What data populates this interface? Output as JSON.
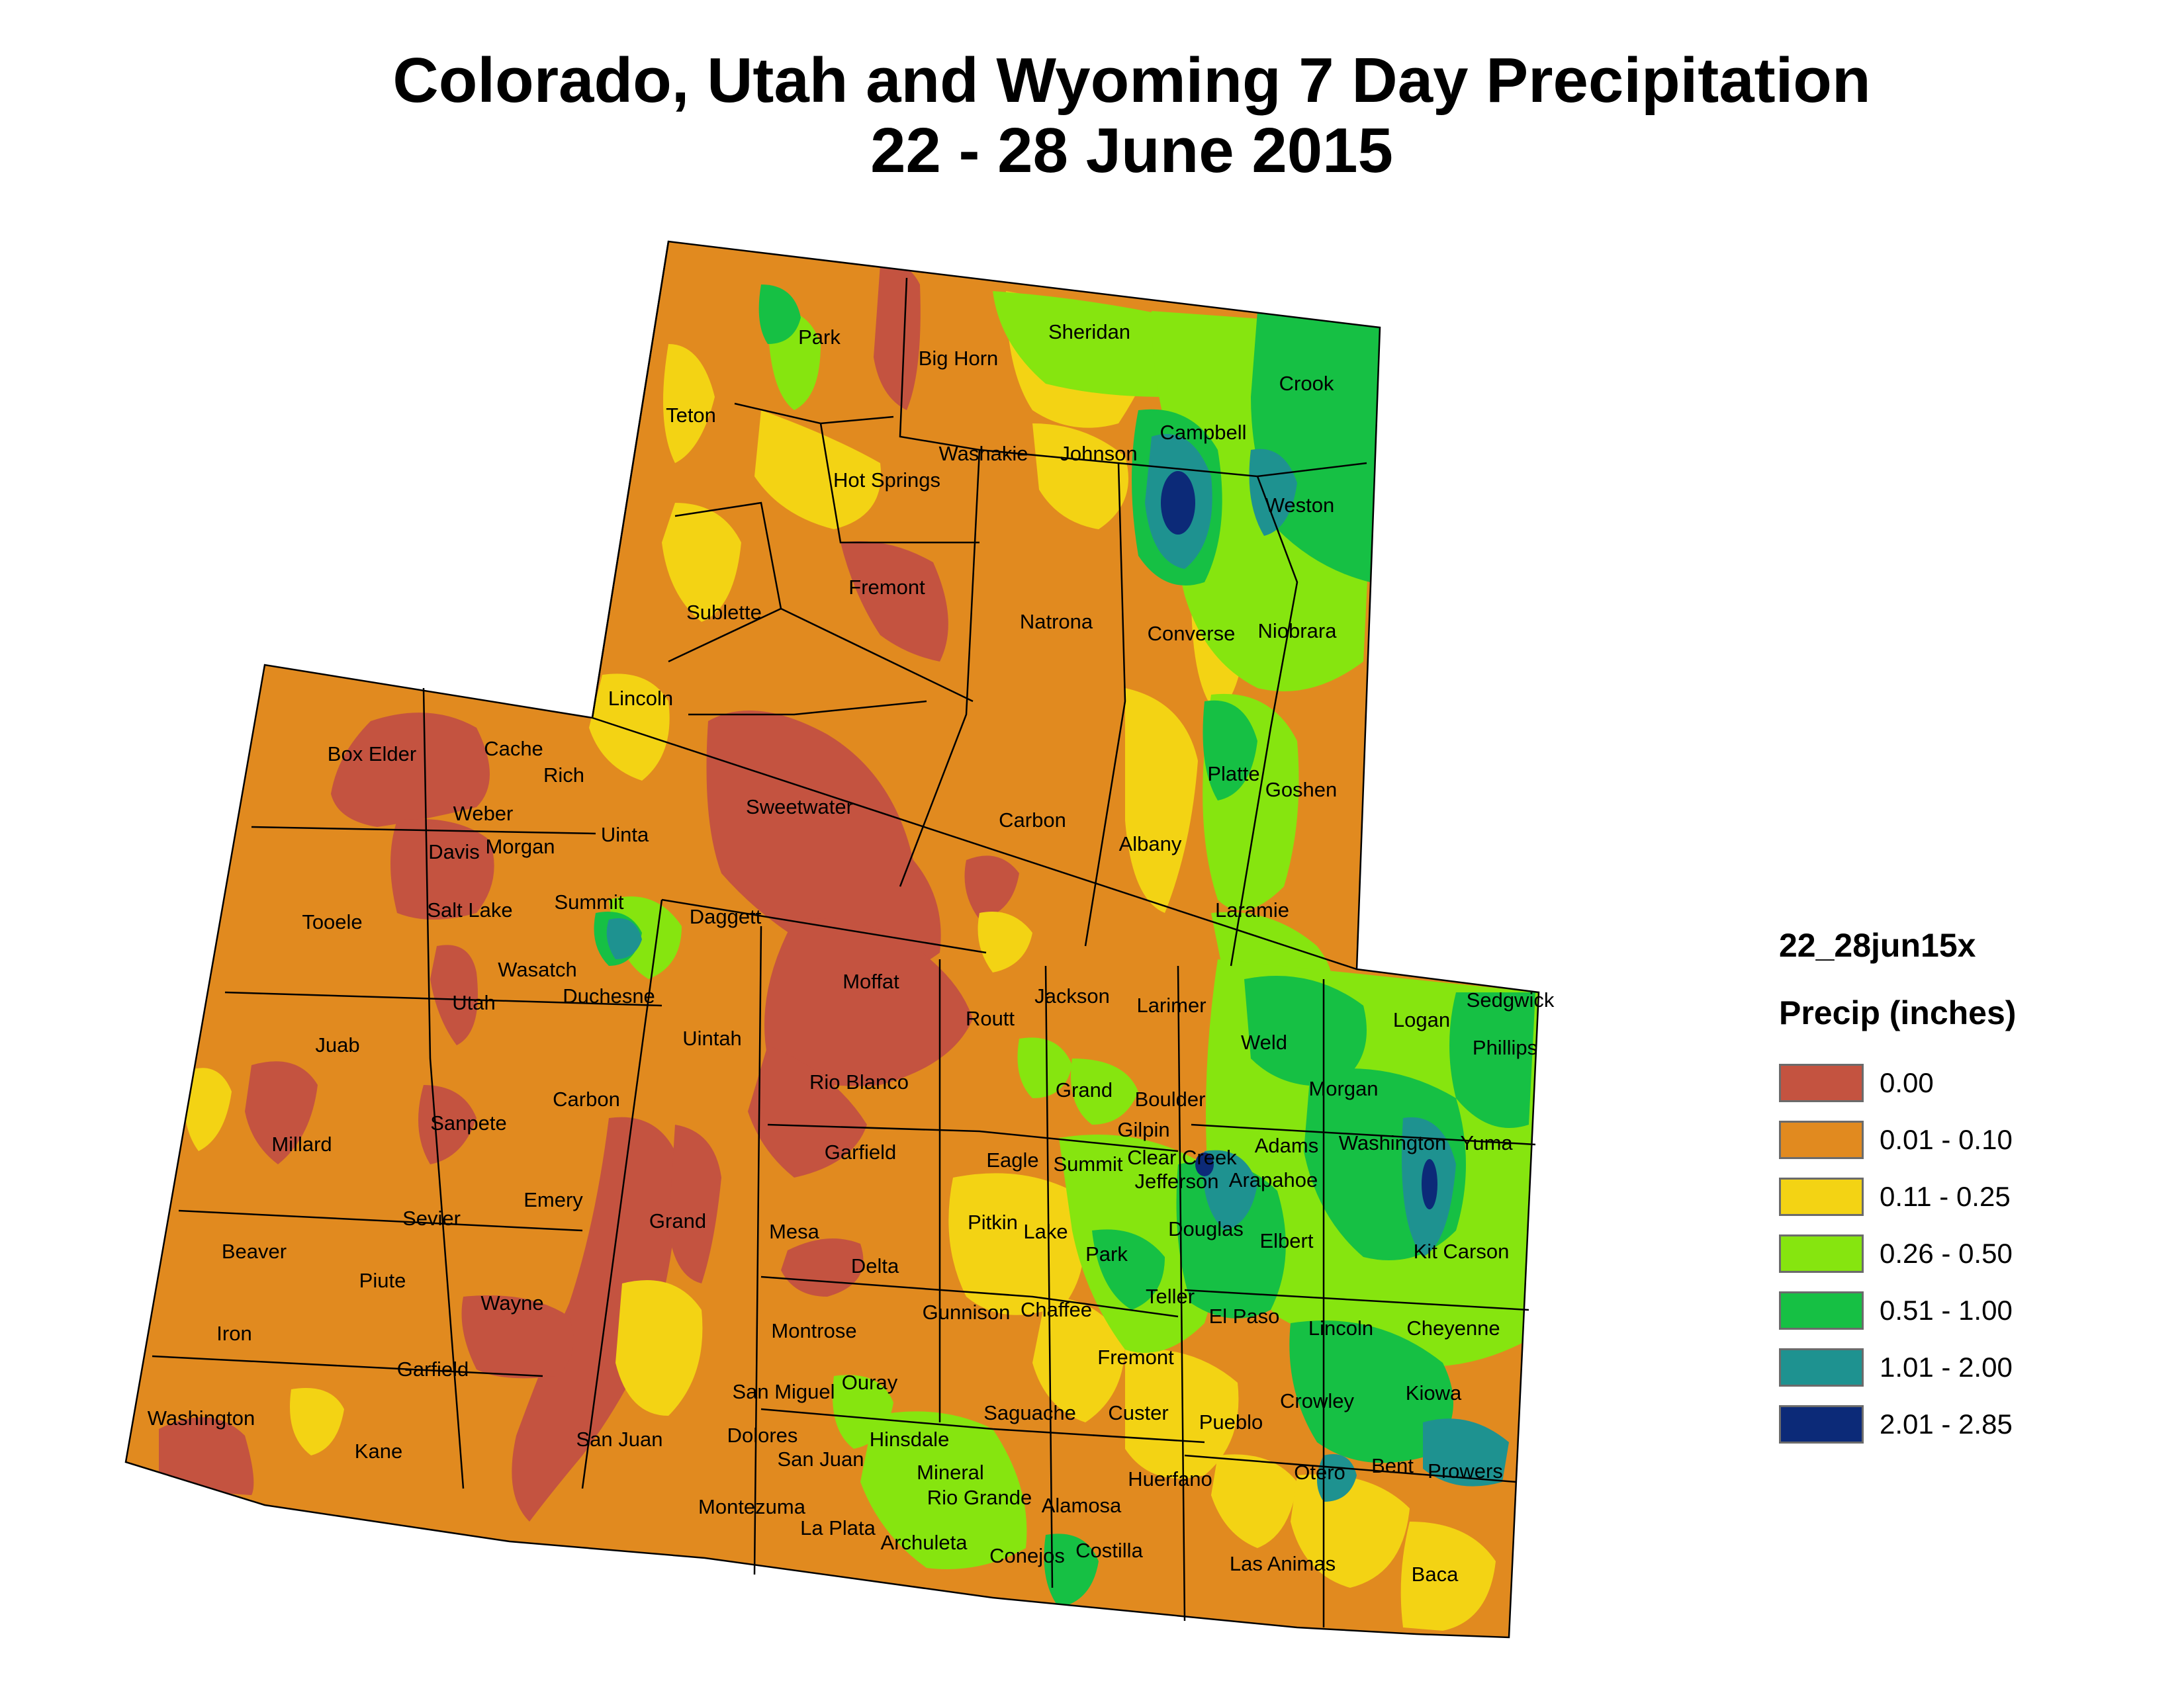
{
  "title": {
    "line1": "Colorado, Utah and Wyoming 7 Day Precipitation",
    "line2": "22 - 28 June 2015"
  },
  "legend": {
    "layer_name": "22_28jun15x",
    "field_name": "Precip (inches)",
    "classes": [
      {
        "label": "0.00",
        "color": "#c45340"
      },
      {
        "label": "0.01 - 0.10",
        "color": "#e18a1f"
      },
      {
        "label": "0.11 - 0.25",
        "color": "#f3d314"
      },
      {
        "label": "0.26 - 0.50",
        "color": "#86e50f"
      },
      {
        "label": "0.51 - 1.00",
        "color": "#16c044"
      },
      {
        "label": "1.01 - 2.00",
        "color": "#1e9290"
      },
      {
        "label": "2.01 - 2.85",
        "color": "#0c2a78"
      }
    ]
  },
  "counties": {
    "wyoming": [
      "Park",
      "Big Horn",
      "Sheridan",
      "Crook",
      "Teton",
      "Washakie",
      "Johnson",
      "Campbell",
      "Hot Springs",
      "Weston",
      "Fremont",
      "Sublette",
      "Natrona",
      "Converse",
      "Niobrara",
      "Lincoln",
      "Sweetwater",
      "Carbon",
      "Platte",
      "Goshen",
      "Uinta",
      "Albany",
      "Laramie"
    ],
    "utah": [
      "Box Elder",
      "Cache",
      "Rich",
      "Weber",
      "Davis",
      "Morgan",
      "Tooele",
      "Salt Lake",
      "Summit",
      "Daggett",
      "Wasatch",
      "Utah",
      "Duchesne",
      "Uintah",
      "Juab",
      "Carbon",
      "Millard",
      "Sanpete",
      "Emery",
      "Grand",
      "Sevier",
      "Beaver",
      "Piute",
      "Wayne",
      "Iron",
      "Garfield",
      "Washington",
      "Kane",
      "San Juan"
    ],
    "colorado": [
      "Moffat",
      "Routt",
      "Jackson",
      "Larimer",
      "Weld",
      "Logan",
      "Sedgwick",
      "Phillips",
      "Rio Blanco",
      "Grand",
      "Boulder",
      "Morgan",
      "Gilpin",
      "Washington",
      "Yuma",
      "Garfield",
      "Eagle",
      "Summit",
      "Clear Creek",
      "Adams",
      "Jefferson",
      "Arapahoe",
      "Mesa",
      "Pitkin",
      "Lake",
      "Douglas",
      "Elbert",
      "Kit Carson",
      "Delta",
      "Park",
      "Teller",
      "Gunnison",
      "Chaffee",
      "El Paso",
      "Lincoln",
      "Cheyenne",
      "Montrose",
      "Fremont",
      "San Miguel",
      "Ouray",
      "Saguache",
      "Custer",
      "Pueblo",
      "Crowley",
      "Kiowa",
      "Dolores",
      "Hinsdale",
      "San Juan",
      "Mineral",
      "Rio Grande",
      "Alamosa",
      "Huerfano",
      "Otero",
      "Bent",
      "Prowers",
      "Montezuma",
      "La Plata",
      "Archuleta",
      "Conejos",
      "Costilla",
      "Las Animas",
      "Baca"
    ]
  }
}
